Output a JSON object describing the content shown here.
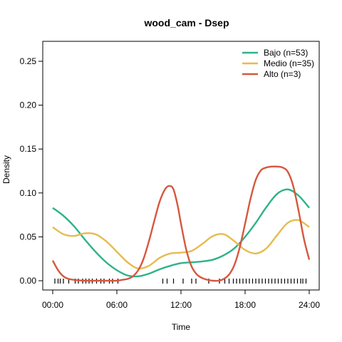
{
  "chart_data": {
    "type": "line",
    "title": "wood_cam - Dsep",
    "xlabel": "Time",
    "ylabel": "Density",
    "xlim": [
      0,
      24
    ],
    "ylim": [
      0,
      0.27
    ],
    "x_ticks": [
      0,
      6,
      12,
      18,
      24
    ],
    "x_tick_labels": [
      "00:00",
      "06:00",
      "12:00",
      "18:00",
      "24:00"
    ],
    "y_ticks": [
      0.0,
      0.05,
      0.1,
      0.15,
      0.2,
      0.25
    ],
    "y_tick_labels": [
      "0.00",
      "0.05",
      "0.10",
      "0.15",
      "0.20",
      "0.25"
    ],
    "grid": false,
    "legend_position": "top-right",
    "series": [
      {
        "name": "Bajo (n=53)",
        "color": "#2eb28a",
        "x": [
          0,
          1,
          2,
          3,
          4,
          5,
          6,
          7,
          8,
          9,
          10,
          11,
          12,
          13,
          14,
          15,
          16,
          17,
          18,
          19,
          20,
          21,
          22,
          23,
          24
        ],
        "y": [
          0.083,
          0.074,
          0.062,
          0.047,
          0.033,
          0.021,
          0.012,
          0.006,
          0.005,
          0.008,
          0.013,
          0.017,
          0.02,
          0.021,
          0.022,
          0.024,
          0.029,
          0.037,
          0.05,
          0.066,
          0.084,
          0.099,
          0.104,
          0.097,
          0.083
        ]
      },
      {
        "name": "Medio (n=35)",
        "color": "#e6bb4f",
        "x": [
          0,
          1,
          2,
          3,
          4,
          5,
          6,
          7,
          8,
          9,
          10,
          11,
          12,
          13,
          14,
          15,
          16,
          17,
          18,
          19,
          20,
          21,
          22,
          23,
          24
        ],
        "y": [
          0.061,
          0.053,
          0.051,
          0.054,
          0.053,
          0.045,
          0.033,
          0.021,
          0.014,
          0.017,
          0.026,
          0.031,
          0.032,
          0.034,
          0.042,
          0.051,
          0.053,
          0.045,
          0.035,
          0.031,
          0.037,
          0.052,
          0.066,
          0.069,
          0.061
        ]
      },
      {
        "name": "Alto (n=3)",
        "color": "#d6573e",
        "x": [
          0,
          0.5,
          1,
          1.5,
          2,
          3,
          4,
          5,
          6,
          6.5,
          7,
          7.5,
          8,
          8.5,
          9,
          9.5,
          10,
          10.5,
          10.9,
          11.3,
          11.7,
          12,
          12.5,
          13,
          13.5,
          14,
          14.5,
          15,
          15.5,
          16,
          16.5,
          17,
          17.5,
          18,
          18.5,
          19,
          19.5,
          20,
          20.5,
          21,
          21.5,
          22,
          22.5,
          23,
          23.5,
          24
        ],
        "y": [
          0.023,
          0.012,
          0.005,
          0.002,
          0.001,
          0.0,
          0.0,
          0.0,
          0.0,
          0.001,
          0.002,
          0.005,
          0.012,
          0.025,
          0.045,
          0.068,
          0.09,
          0.104,
          0.108,
          0.104,
          0.085,
          0.065,
          0.035,
          0.016,
          0.007,
          0.003,
          0.001,
          0.0,
          0.0,
          0.002,
          0.007,
          0.018,
          0.038,
          0.065,
          0.093,
          0.115,
          0.126,
          0.129,
          0.13,
          0.13,
          0.129,
          0.124,
          0.108,
          0.08,
          0.048,
          0.024
        ]
      }
    ],
    "rug_times": [
      0.2,
      0.5,
      0.7,
      1.0,
      1.5,
      2.1,
      2.4,
      2.8,
      3.1,
      3.4,
      3.7,
      4.1,
      4.5,
      4.8,
      5.3,
      5.6,
      6.1,
      10.3,
      10.7,
      11.3,
      12.2,
      13.0,
      13.4,
      14.6,
      15.6,
      16.1,
      16.5,
      16.9,
      17.2,
      17.5,
      17.8,
      18.1,
      18.4,
      18.7,
      19.0,
      19.3,
      19.6,
      19.9,
      20.2,
      20.5,
      20.8,
      21.1,
      21.4,
      21.7,
      22.0,
      22.3,
      22.6,
      22.9,
      23.2,
      23.4,
      23.7
    ]
  }
}
